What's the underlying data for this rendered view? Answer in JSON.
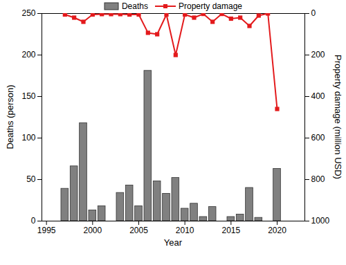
{
  "chart_data": {
    "type": "bar",
    "x_label": "Year",
    "y_label": "Deaths (person)",
    "y2_label": "Property damage (million USD)",
    "x": [
      1997,
      1998,
      1999,
      2000,
      2001,
      2002,
      2003,
      2004,
      2005,
      2006,
      2007,
      2008,
      2009,
      2010,
      2011,
      2012,
      2013,
      2014,
      2015,
      2016,
      2017,
      2018,
      2019,
      2020
    ],
    "series": [
      {
        "name": "Deaths",
        "type": "bar",
        "color": "#808080",
        "values": [
          39,
          66,
          118,
          13,
          18,
          0,
          34,
          43,
          18,
          181,
          48,
          33,
          52,
          15,
          21,
          5,
          17,
          0,
          5,
          8,
          40,
          4,
          0,
          63
        ]
      },
      {
        "name": "Property damage",
        "type": "line",
        "axis": "y2",
        "color": "#e31a1c",
        "marker": "square",
        "values": [
          5,
          20,
          40,
          5,
          3,
          3,
          3,
          5,
          5,
          93,
          100,
          5,
          200,
          5,
          20,
          2,
          40,
          2,
          25,
          20,
          60,
          10,
          0,
          460
        ]
      }
    ],
    "xlim": [
      1994.5,
      2023
    ],
    "xticks": [
      1995,
      2000,
      2005,
      2010,
      2015,
      2020
    ],
    "ylim": [
      0,
      250
    ],
    "yticks": [
      0,
      50,
      100,
      150,
      200,
      250
    ],
    "y2lim": [
      1000,
      0
    ],
    "y2ticks": [
      0,
      200,
      400,
      600,
      800,
      1000
    ],
    "legend": "top"
  }
}
